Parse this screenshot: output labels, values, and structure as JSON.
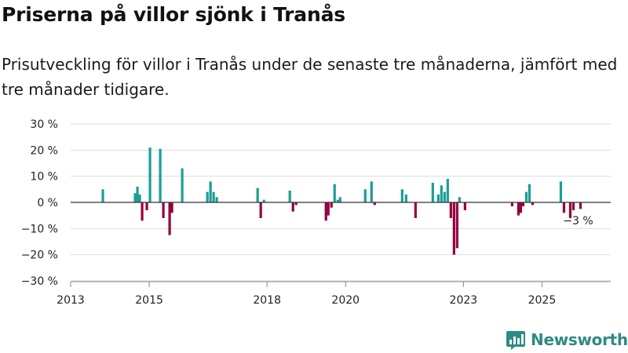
{
  "title": "Priserna på villor sjönk i Tranås",
  "subtitle": "Prisutveckling för villor i Tranås under de senaste tre månaderna, jämfört med tre månader tidigare.",
  "brand": {
    "name": "Newsworthy"
  },
  "colors": {
    "positive": "#1a9e96",
    "negative": "#95003f",
    "grid": "#dddddd",
    "zero": "#333333",
    "axis": "#888888"
  },
  "chart_data": {
    "type": "bar",
    "title": "Priserna på villor sjönk i Tranås",
    "xlabel": "",
    "ylabel": "",
    "x_range": [
      2013.0,
      2026.75
    ],
    "ylim": [
      -30,
      30
    ],
    "y_ticks": [
      30,
      20,
      10,
      0,
      -10,
      -20,
      -30
    ],
    "y_tick_labels": [
      "30 %",
      "20 %",
      "10 %",
      "0 %",
      "−10 %",
      "−20 %",
      "−30 %"
    ],
    "x_ticks": [
      2013,
      2015,
      2018,
      2020,
      2023,
      2025
    ],
    "x_tick_labels": [
      "2013",
      "2015",
      "2018",
      "2020",
      "2023",
      "2025"
    ],
    "annotation": {
      "text": "−3 %",
      "x": 2025.92,
      "y": -3
    },
    "series": [
      {
        "name": "Prisutveckling",
        "x": [
          2013.82,
          2014.64,
          2014.7,
          2014.76,
          2014.82,
          2014.94,
          2015.02,
          2015.28,
          2015.36,
          2015.52,
          2015.58,
          2015.84,
          2016.48,
          2016.56,
          2016.64,
          2016.72,
          2017.76,
          2017.84,
          2017.92,
          2018.58,
          2018.66,
          2018.74,
          2019.5,
          2019.56,
          2019.64,
          2019.72,
          2019.8,
          2019.86,
          2020.5,
          2020.66,
          2020.74,
          2021.44,
          2021.54,
          2021.78,
          2022.22,
          2022.36,
          2022.44,
          2022.52,
          2022.6,
          2022.68,
          2022.76,
          2022.84,
          2022.9,
          2023.04,
          2024.24,
          2024.4,
          2024.46,
          2024.52,
          2024.6,
          2024.68,
          2024.76,
          2025.48,
          2025.56,
          2025.72,
          2025.8,
          2025.98
        ],
        "values": [
          5,
          3.5,
          6,
          3,
          -7,
          -3,
          21,
          20.5,
          -6,
          -12.5,
          -4,
          13,
          4,
          8,
          4,
          2,
          5.5,
          -6,
          1,
          4.5,
          -3.5,
          -1,
          -7,
          -5,
          -2,
          7,
          1,
          2,
          5,
          8,
          -1,
          5,
          3,
          -6,
          7.5,
          3,
          6.5,
          4,
          9,
          -6,
          -20,
          -17.5,
          2,
          -3,
          -1.5,
          -5,
          -4,
          -1.5,
          4,
          7,
          -1,
          8,
          -4,
          -6,
          -3,
          -2.5
        ]
      }
    ]
  }
}
